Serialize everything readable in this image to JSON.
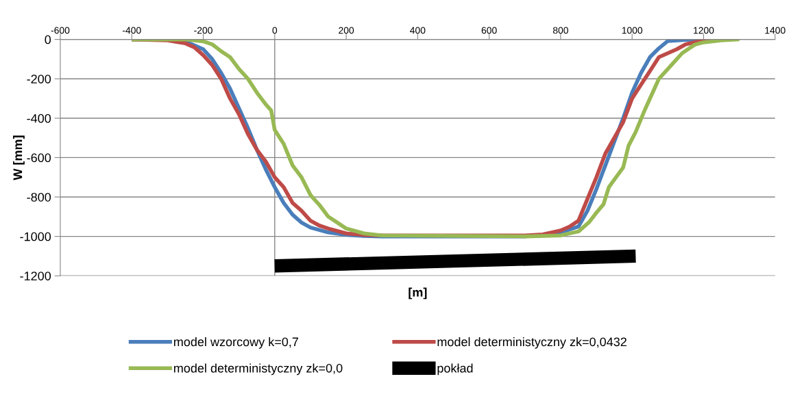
{
  "chart_data": {
    "type": "line",
    "xlabel": "[m]",
    "ylabel": "W [mm]",
    "xlim": [
      -600,
      1400
    ],
    "xticks": [
      -600,
      -400,
      -200,
      0,
      200,
      400,
      600,
      800,
      1000,
      1200,
      1400
    ],
    "ylim": [
      -1200,
      0
    ],
    "yticks": [
      -1200,
      -1000,
      -800,
      -600,
      -400,
      -200,
      0
    ],
    "grid": "y",
    "ref_lines": [
      {
        "axis": "x",
        "value": 0,
        "color": "#868686"
      }
    ],
    "legend": "bottom",
    "marker": "none",
    "line_style": "solid",
    "series": [
      {
        "name": "model wzorcowy k=0,7",
        "color": "#4a7ebb",
        "x": [
          -400,
          -300,
          -250,
          -200,
          -175,
          -150,
          -125,
          -100,
          -75,
          -50,
          -25,
          0,
          25,
          50,
          75,
          100,
          150,
          200,
          250,
          300,
          700,
          750,
          800,
          850,
          875,
          900,
          925,
          950,
          975,
          1000,
          1025,
          1050,
          1075,
          1100,
          1150,
          1200
        ],
        "values": [
          0,
          -2,
          -10,
          -50,
          -100,
          -170,
          -250,
          -350,
          -450,
          -560,
          -660,
          -750,
          -830,
          -890,
          -930,
          -955,
          -980,
          -992,
          -998,
          -1000,
          -1000,
          -995,
          -980,
          -950,
          -870,
          -760,
          -640,
          -520,
          -400,
          -270,
          -170,
          -90,
          -45,
          -8,
          -2,
          0
        ]
      },
      {
        "name": "model deterministyczny zk=0,0432",
        "color": "#be4b48",
        "x": [
          -400,
          -300,
          -250,
          -225,
          -200,
          -175,
          -150,
          -125,
          -100,
          -75,
          -50,
          -25,
          0,
          25,
          50,
          75,
          100,
          125,
          150,
          200,
          250,
          300,
          700,
          750,
          800,
          825,
          850,
          875,
          900,
          925,
          950,
          975,
          1000,
          1025,
          1050,
          1075,
          1100,
          1125,
          1150,
          1200,
          1250
        ],
        "values": [
          0,
          -5,
          -20,
          -40,
          -80,
          -130,
          -200,
          -300,
          -380,
          -480,
          -560,
          -620,
          -700,
          -750,
          -830,
          -870,
          -920,
          -945,
          -960,
          -985,
          -993,
          -995,
          -995,
          -990,
          -970,
          -950,
          -920,
          -810,
          -700,
          -580,
          -500,
          -420,
          -300,
          -230,
          -160,
          -90,
          -70,
          -50,
          -25,
          -5,
          0
        ]
      },
      {
        "name": "model deterministyczny zk=0,0",
        "color": "#98b954",
        "x": [
          -400,
          -250,
          -200,
          -175,
          -150,
          -125,
          -100,
          -75,
          -50,
          -25,
          -10,
          0,
          25,
          50,
          75,
          100,
          125,
          150,
          175,
          200,
          250,
          300,
          700,
          800,
          850,
          880,
          900,
          920,
          935,
          955,
          975,
          990,
          1010,
          1035,
          1050,
          1075,
          1100,
          1125,
          1140,
          1175,
          1200,
          1250,
          1300
        ],
        "values": [
          0,
          0,
          -10,
          -25,
          -60,
          -90,
          -150,
          -200,
          -270,
          -330,
          -360,
          -460,
          -530,
          -640,
          -700,
          -790,
          -840,
          -900,
          -930,
          -960,
          -985,
          -995,
          -1000,
          -995,
          -975,
          -927,
          -880,
          -837,
          -750,
          -700,
          -650,
          -540,
          -470,
          -360,
          -300,
          -200,
          -150,
          -100,
          -70,
          -27,
          -15,
          -5,
          0
        ]
      },
      {
        "name": "pokład",
        "color": "#000000",
        "x": [
          0,
          1010
        ],
        "values": [
          -1150,
          -1100
        ]
      }
    ]
  }
}
